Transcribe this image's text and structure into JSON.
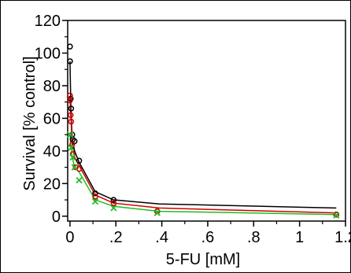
{
  "chart_data": {
    "type": "scatter",
    "xlabel": "5-FU [mM]",
    "ylabel": "Survival  [% control]",
    "xlim": [
      -0.01,
      1.2
    ],
    "ylim": [
      -3,
      120
    ],
    "x_ticks": [
      0,
      0.2,
      0.4,
      0.6,
      0.8,
      1,
      1.2
    ],
    "x_tick_labels": [
      "0",
      ".2",
      ".4",
      ".6",
      ".8",
      "1",
      "1.2"
    ],
    "y_ticks": [
      0,
      20,
      40,
      60,
      80,
      100,
      120
    ],
    "y_tick_labels": [
      "0",
      "20",
      "40",
      "60",
      "80",
      "100",
      "120"
    ],
    "grid": false,
    "legend": "none",
    "series": [
      {
        "color": "#000000",
        "marker": "circle",
        "line": [
          [
            0,
            95
          ],
          [
            0.004,
            66
          ],
          [
            0.01,
            47
          ],
          [
            0.02,
            40
          ],
          [
            0.04,
            33
          ],
          [
            0.11,
            15
          ],
          [
            0.19,
            10
          ],
          [
            0.39,
            7.5
          ],
          [
            1.16,
            5
          ]
        ],
        "points": [
          [
            0,
            104
          ],
          [
            0,
            95
          ],
          [
            0.003,
            72
          ],
          [
            0.005,
            66
          ],
          [
            0.01,
            50
          ],
          [
            0.012,
            47
          ],
          [
            0.02,
            46
          ],
          [
            0.04,
            34
          ],
          [
            0.11,
            14
          ],
          [
            0.19,
            10
          ],
          [
            0.38,
            3
          ],
          [
            1.16,
            1
          ]
        ]
      },
      {
        "color": "#cc0000",
        "marker": "circle",
        "line": [
          [
            0,
            72
          ],
          [
            0.004,
            60
          ],
          [
            0.01,
            44
          ],
          [
            0.02,
            36
          ],
          [
            0.04,
            31
          ],
          [
            0.11,
            13
          ],
          [
            0.19,
            8
          ],
          [
            0.39,
            5
          ],
          [
            1.16,
            2
          ]
        ],
        "points": [
          [
            0,
            74
          ],
          [
            0,
            71
          ],
          [
            0.003,
            62
          ],
          [
            0.005,
            58
          ],
          [
            0.01,
            44
          ],
          [
            0.012,
            38
          ],
          [
            0.025,
            30
          ],
          [
            0.04,
            29
          ],
          [
            0.11,
            12
          ],
          [
            0.19,
            8
          ],
          [
            0.38,
            3
          ],
          [
            1.16,
            1
          ]
        ]
      },
      {
        "color": "#22bb22",
        "marker": "x",
        "line": [
          [
            0,
            50
          ],
          [
            0.004,
            42
          ],
          [
            0.01,
            36
          ],
          [
            0.02,
            30
          ],
          [
            0.04,
            27
          ],
          [
            0.11,
            10
          ],
          [
            0.19,
            6
          ],
          [
            0.39,
            3
          ],
          [
            1.16,
            1
          ]
        ],
        "points": [
          [
            0,
            50
          ],
          [
            0.005,
            42
          ],
          [
            0.012,
            36
          ],
          [
            0.02,
            30
          ],
          [
            0.04,
            22
          ],
          [
            0.11,
            9
          ],
          [
            0.19,
            5
          ],
          [
            0.38,
            2
          ],
          [
            1.16,
            0.5
          ]
        ]
      }
    ]
  }
}
